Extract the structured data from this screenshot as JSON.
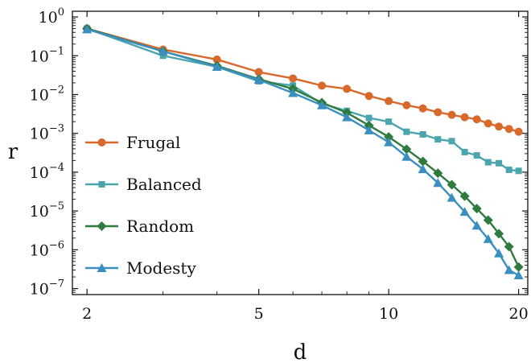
{
  "chart_data": {
    "type": "line",
    "xscale": "log",
    "yscale": "log",
    "xlabel": "d",
    "ylabel": "r",
    "xlim": [
      1.85,
      21
    ],
    "ylim": [
      7e-08,
      1.4
    ],
    "xticks": [
      {
        "value": 2,
        "label": "2"
      },
      {
        "value": 5,
        "label": "5"
      },
      {
        "value": 10,
        "label": "10"
      },
      {
        "value": 20,
        "label": "20"
      }
    ],
    "yticks": [
      {
        "value": 1e-07,
        "base": "10",
        "exp": "−7"
      },
      {
        "value": 1e-06,
        "base": "10",
        "exp": "−6"
      },
      {
        "value": 1e-05,
        "base": "10",
        "exp": "−5"
      },
      {
        "value": 0.0001,
        "base": "10",
        "exp": "−4"
      },
      {
        "value": 0.001,
        "base": "10",
        "exp": "−3"
      },
      {
        "value": 0.01,
        "base": "10",
        "exp": "−2"
      },
      {
        "value": 0.1,
        "base": "10",
        "exp": "−1"
      },
      {
        "value": 1,
        "base": "10",
        "exp": "0"
      }
    ],
    "grid": false,
    "legend_position": "center-left",
    "x": [
      2,
      3,
      4,
      5,
      6,
      7,
      8,
      9,
      10,
      11,
      12,
      13,
      14,
      15,
      16,
      17,
      18,
      19,
      20
    ],
    "series": [
      {
        "name": "Frugal",
        "color": "#d9692b",
        "marker": "circle",
        "values": [
          0.5,
          0.145,
          0.08,
          0.038,
          0.026,
          0.017,
          0.014,
          0.0092,
          0.0068,
          0.0053,
          0.0044,
          0.0035,
          0.003,
          0.0026,
          0.0023,
          0.0018,
          0.0015,
          0.0013,
          0.0011
        ]
      },
      {
        "name": "Balanced",
        "color": "#4aa5ad",
        "marker": "square",
        "values": [
          0.5,
          0.1,
          0.052,
          0.022,
          0.017,
          0.0058,
          0.0038,
          0.0025,
          0.002,
          0.0011,
          0.00094,
          0.0007,
          0.00063,
          0.00033,
          0.00027,
          0.00018,
          0.00017,
          0.000115,
          0.000108
        ]
      },
      {
        "name": "Random",
        "color": "#2f7a3f",
        "marker": "diamond",
        "values": [
          0.5,
          0.13,
          0.055,
          0.025,
          0.014,
          0.0062,
          0.0034,
          0.0016,
          0.00081,
          0.00039,
          0.00019,
          9.45e-05,
          4.75e-05,
          2.4e-05,
          1.15e-05,
          5.8e-06,
          2.6e-06,
          1.2e-06,
          3.6e-07
        ]
      },
      {
        "name": "Modesty",
        "color": "#3a8fc0",
        "marker": "triangle",
        "values": [
          0.48,
          0.13,
          0.052,
          0.024,
          0.011,
          0.0053,
          0.0026,
          0.0012,
          0.00059,
          0.00025,
          0.00012,
          5.3e-05,
          2.2e-05,
          9.5e-06,
          4.2e-06,
          1.9e-06,
          8.1e-07,
          3e-07,
          2.2e-07
        ]
      }
    ]
  }
}
